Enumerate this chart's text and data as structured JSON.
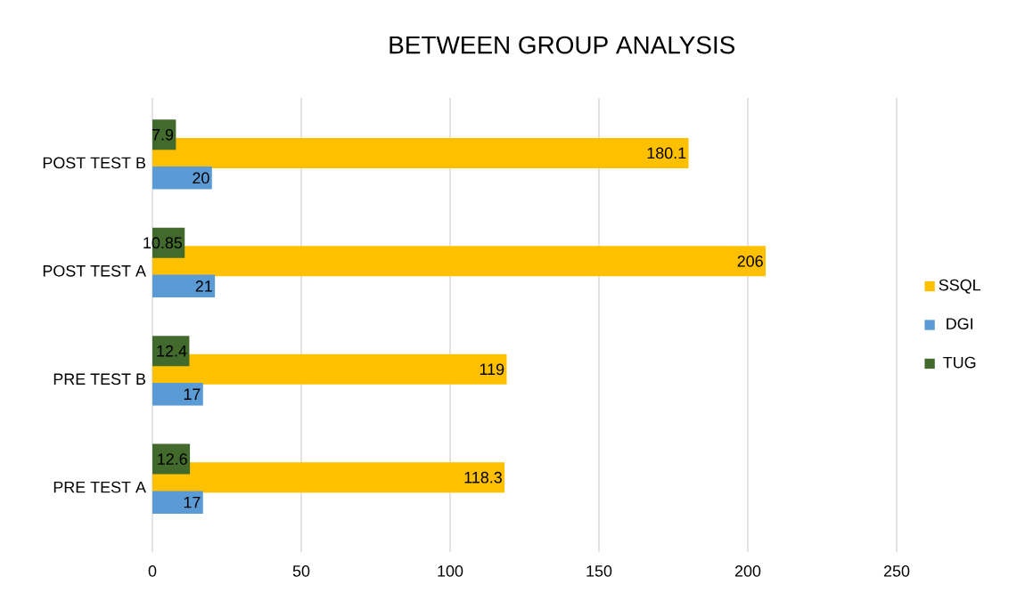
{
  "chart_data": {
    "type": "bar",
    "orientation": "horizontal",
    "title": "BETWEEN GROUP ANALYSIS",
    "categories": [
      "POST TEST B",
      "POST TEST A",
      "PRE TEST B",
      "PRE TEST A"
    ],
    "series": [
      {
        "name": "SSQL",
        "color": "#ffc000",
        "values": [
          180.1,
          206,
          119,
          118.3
        ],
        "value_labels": [
          "180.1",
          "206",
          "119",
          "118.3"
        ]
      },
      {
        "name": "DGI",
        "color": "#5b9bd5",
        "values": [
          20,
          21,
          17,
          17
        ],
        "value_labels": [
          "20",
          "21",
          "17",
          "17"
        ]
      },
      {
        "name": "TUG",
        "color": "#426a2d",
        "values": [
          7.9,
          10.85,
          12.4,
          12.6
        ],
        "value_labels": [
          "7.9",
          "10.85",
          "12.4",
          "12.6"
        ]
      }
    ],
    "xlim": [
      0,
      250
    ],
    "xticks": [
      0,
      50,
      100,
      150,
      200,
      250
    ],
    "grid": "x",
    "legend": "right"
  }
}
